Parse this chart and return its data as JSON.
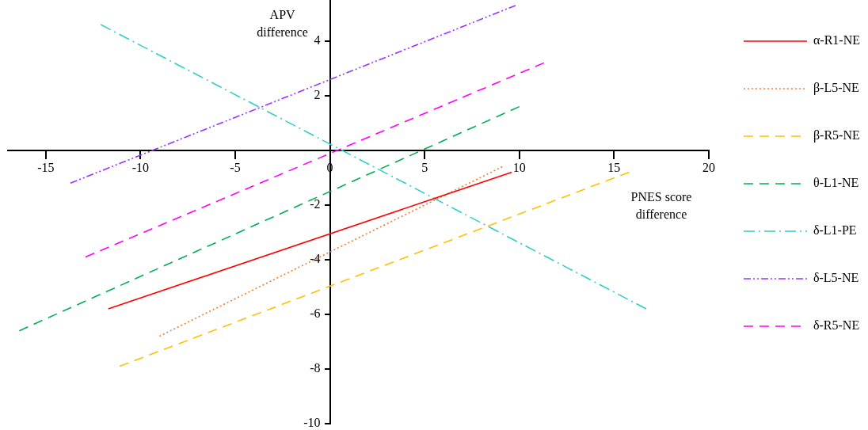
{
  "chart_data": {
    "type": "line",
    "xlabel": "PNES score difference",
    "ylabel": "APV difference",
    "xlim": [
      -17,
      20
    ],
    "xticks": [
      -15,
      -10,
      -5,
      0,
      5,
      10,
      15,
      20
    ],
    "ylim": [
      -10,
      5.5
    ],
    "yticks": [
      -10,
      -8,
      -6,
      -4,
      -2,
      2,
      4
    ],
    "grid": false,
    "legend": "right",
    "marker": "none",
    "series": [
      {
        "name": "α-R1-NE",
        "color": "#ff0000",
        "line_style": "solid",
        "x": [
          -11.7,
          9.6
        ],
        "values": [
          -5.8,
          -0.8
        ]
      },
      {
        "name": "β-L5-NE",
        "color": "#ed7d31",
        "line_style": "dotted",
        "x": [
          -9.0,
          9.1
        ],
        "values": [
          -6.8,
          -0.6
        ]
      },
      {
        "name": "β-R5-NE",
        "color": "#ffc000",
        "line_style": "dashed",
        "x": [
          -11.1,
          15.8
        ],
        "values": [
          -7.9,
          -0.8
        ]
      },
      {
        "name": "θ-L1-NE",
        "color": "#00b050",
        "line_style": "dashed",
        "x": [
          -16.4,
          10.0
        ],
        "values": [
          -6.6,
          1.6
        ]
      },
      {
        "name": "δ-L1-PE",
        "color": "#33cccc",
        "line_style": "dashdot",
        "x": [
          -12.1,
          16.7
        ],
        "values": [
          4.6,
          -5.8
        ]
      },
      {
        "name": "δ-L5-NE",
        "color": "#9933ff",
        "line_style": "dashdotdot",
        "x": [
          -13.7,
          9.8
        ],
        "values": [
          -1.2,
          5.3
        ]
      },
      {
        "name": "δ-R5-NE",
        "color": "#ff00ff",
        "line_style": "dashed",
        "x": [
          -12.9,
          11.3
        ],
        "values": [
          -3.9,
          3.2
        ]
      }
    ]
  }
}
